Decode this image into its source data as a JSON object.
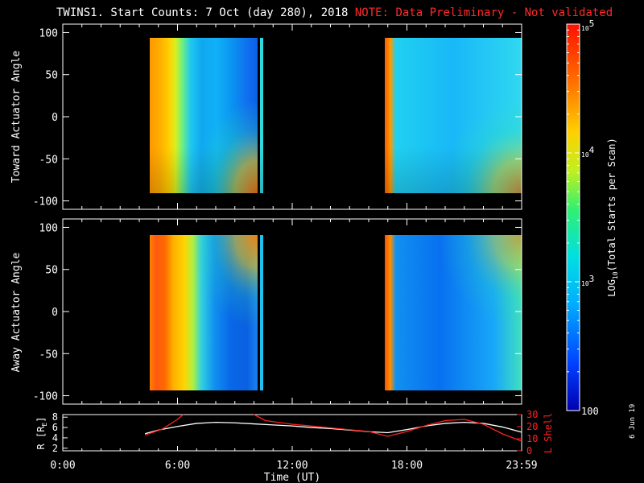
{
  "title": {
    "main": "TWINS1. Start Counts:  7 Oct (day 280), 2018",
    "note": "NOTE: Data Preliminary - Not validated"
  },
  "footer_date": "6 Jun 19",
  "colors": {
    "background": "#000000",
    "note": "#ff2a2a",
    "r_line": "#ffffff",
    "lshell_line": "#ff2020"
  },
  "chart_data": [
    {
      "type": "heatmap",
      "ylabel": "Toward Actuator Angle",
      "ylim": [
        -110,
        110
      ],
      "yticks": [
        "100",
        "50",
        "0",
        "-50",
        "-100"
      ],
      "xlim": [
        0,
        24
      ],
      "data_x_ranges_hours": [
        [
          4.3,
          10.4
        ],
        [
          17.1,
          24.0
        ]
      ],
      "data_y_range": [
        -88,
        90
      ],
      "color_scale": "log",
      "approx_columns": [
        {
          "x": [
            4.3,
            5.3
          ],
          "level": "high (~5e4)"
        },
        {
          "x": [
            5.3,
            7.0
          ],
          "level": "mid (~1e4)"
        },
        {
          "x": [
            7.0,
            10.4
          ],
          "level": "low-mid (~2e3)"
        },
        {
          "x": [
            17.1,
            17.4
          ],
          "level": "high (~5e4)"
        },
        {
          "x": [
            17.4,
            24.0
          ],
          "level": "low (~1.5e3)"
        }
      ]
    },
    {
      "type": "heatmap",
      "ylabel": "Away Actuator Angle",
      "ylim": [
        -110,
        110
      ],
      "yticks": [
        "100",
        "50",
        "0",
        "-50",
        "-100"
      ],
      "xlim": [
        0,
        24
      ],
      "data_x_ranges_hours": [
        [
          4.3,
          10.4
        ],
        [
          17.1,
          24.0
        ]
      ],
      "data_y_range": [
        -88,
        90
      ],
      "color_scale": "log",
      "approx_columns": [
        {
          "x": [
            4.3,
            5.6
          ],
          "level": "high (~6e4)"
        },
        {
          "x": [
            5.6,
            7.5
          ],
          "level": "mid (~1e4)"
        },
        {
          "x": [
            7.5,
            10.4
          ],
          "level": "low (~1.5e3)"
        },
        {
          "x": [
            17.1,
            17.4
          ],
          "level": "high (~5e4)"
        },
        {
          "x": [
            17.4,
            24.0
          ],
          "level": "low (~1.3e3)"
        }
      ]
    },
    {
      "type": "line",
      "ylabel": "R [R",
      "ylabel_sub": "E",
      "ylabel_close": "]",
      "xlabel": "Time (UT)",
      "xticks": [
        "0:00",
        "6:00",
        "12:00",
        "18:00",
        "23:59"
      ],
      "xlim": [
        0,
        24
      ],
      "ylim": [
        1.5,
        8.5
      ],
      "yticks": [
        "8",
        "6",
        "4",
        "2"
      ],
      "y2label": "L Shell",
      "y2lim": [
        0,
        30
      ],
      "y2ticks": [
        "30",
        "20",
        "10",
        "0"
      ],
      "series": [
        {
          "axis": "left",
          "x": [
            4.3,
            5.0,
            6.0,
            7.0,
            8.0,
            9.0,
            10.0,
            11.0,
            12.0,
            13.0,
            14.0,
            15.0,
            16.0,
            17.0,
            18.0,
            19.0,
            20.0,
            21.0,
            22.0,
            23.0,
            24.0
          ],
          "y": [
            4.8,
            5.5,
            6.2,
            6.8,
            7.0,
            6.9,
            6.7,
            6.5,
            6.3,
            6.0,
            5.8,
            5.5,
            5.2,
            5.0,
            5.6,
            6.3,
            6.8,
            7.0,
            6.8,
            6.1,
            5.1
          ]
        },
        {
          "axis": "right",
          "x": [
            4.3,
            5.2,
            6.0,
            6.3
          ],
          "y": [
            13,
            18,
            26,
            30
          ]
        },
        {
          "axis": "right",
          "x": [
            10.0,
            10.6,
            12.0,
            14.0,
            16.0,
            17.0,
            18.0,
            19.0,
            20.0,
            21.0,
            22.0,
            23.0,
            24.0
          ],
          "y": [
            30,
            25,
            22,
            19,
            16,
            12,
            16,
            21,
            25,
            26,
            22,
            14,
            8
          ]
        }
      ]
    }
  ],
  "colorbar": {
    "label_main": "LOG",
    "label_sub": "10",
    "label_rest": "(Total Starts per Scan)",
    "scale": "log",
    "range": [
      100,
      100000
    ],
    "tick_labels": [
      {
        "base": "10",
        "exp": "5"
      },
      {
        "base": "10",
        "exp": "4"
      },
      {
        "base": "10",
        "exp": "3"
      },
      {
        "base": "100",
        "exp": ""
      }
    ]
  }
}
